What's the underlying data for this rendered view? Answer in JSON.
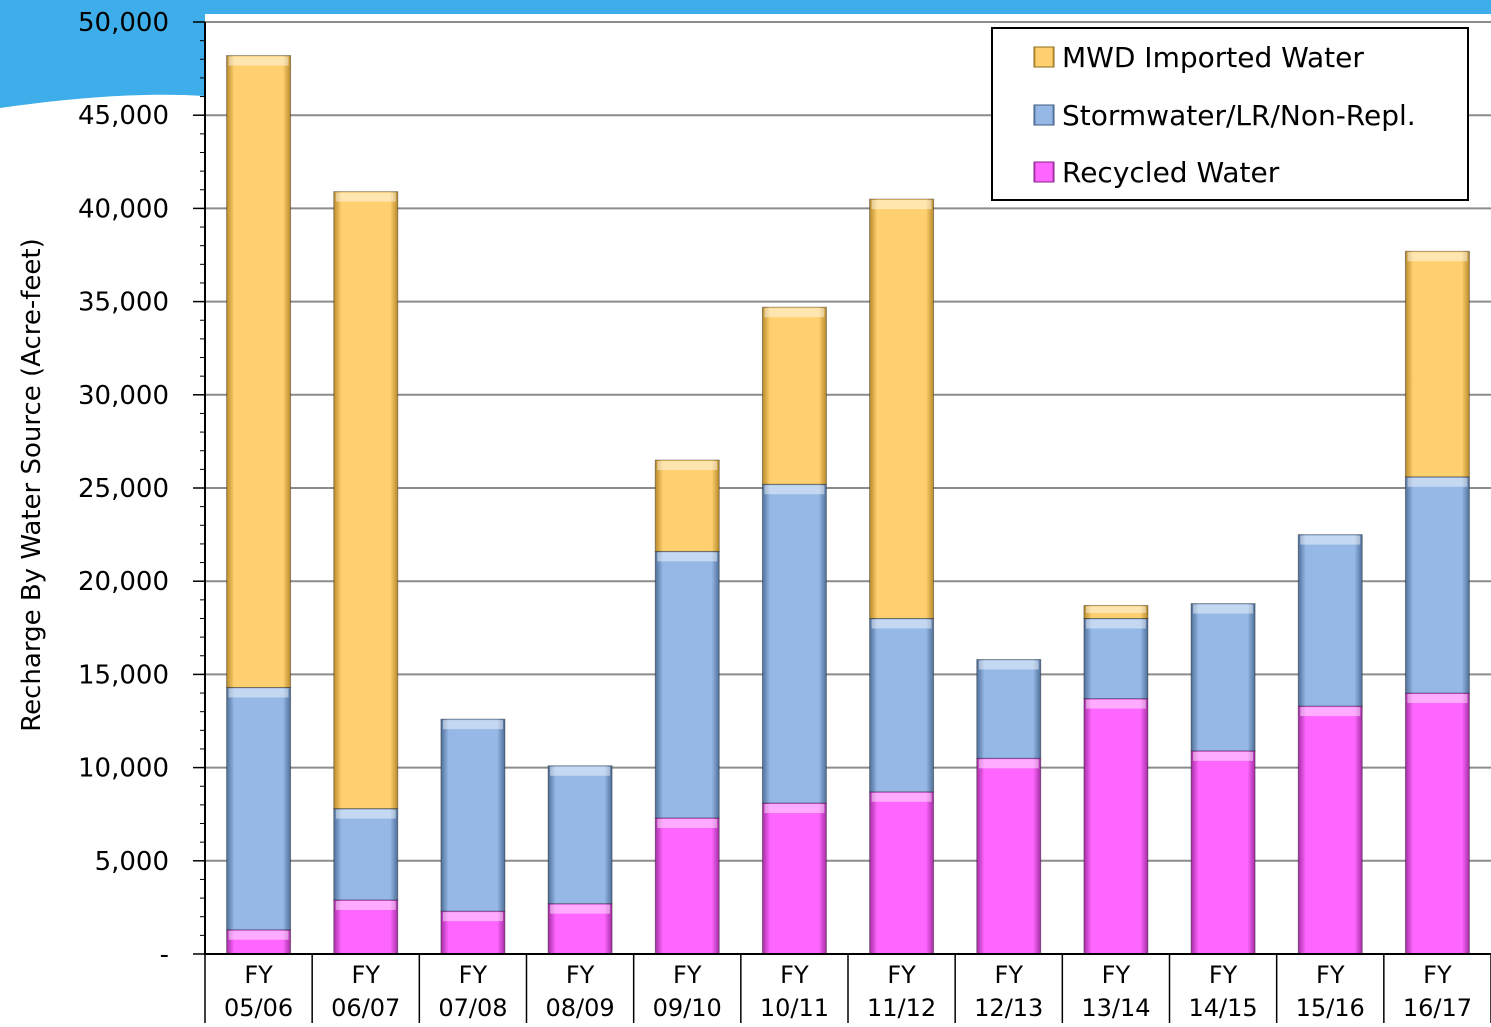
{
  "colors": {
    "slide_accent": "#3daee9",
    "recycled": "#ff66ff",
    "stormwater": "#95b8e6",
    "mwd": "#ffd070",
    "gridline": "#8c8c8c",
    "plot_background": "#ffffff"
  },
  "chart_data": {
    "type": "bar",
    "stacked": true,
    "categories": [
      [
        "FY",
        "05/06"
      ],
      [
        "FY",
        "06/07"
      ],
      [
        "FY",
        "07/08"
      ],
      [
        "FY",
        "08/09"
      ],
      [
        "FY",
        "09/10"
      ],
      [
        "FY",
        "10/11"
      ],
      [
        "FY",
        "11/12"
      ],
      [
        "FY",
        "12/13"
      ],
      [
        "FY",
        "13/14"
      ],
      [
        "FY",
        "14/15"
      ],
      [
        "FY",
        "15/16"
      ],
      [
        "FY",
        "16/17"
      ]
    ],
    "series": [
      {
        "name": "Recycled Water",
        "color": "#ff66ff",
        "values": [
          1300,
          2900,
          2300,
          2700,
          7300,
          8100,
          8700,
          10500,
          13700,
          10900,
          13300,
          14000
        ]
      },
      {
        "name": "Stormwater/LR/Non-Repl.",
        "color": "#95b8e6",
        "values": [
          13000,
          4900,
          10300,
          7400,
          14300,
          17100,
          9300,
          5300,
          4300,
          7900,
          9200,
          11600
        ]
      },
      {
        "name": "MWD Imported Water",
        "color": "#ffd070",
        "values": [
          33900,
          33100,
          0,
          0,
          4900,
          9500,
          22500,
          0,
          700,
          0,
          0,
          12100
        ]
      }
    ],
    "legend_order": [
      "MWD Imported Water",
      "Stormwater/LR/Non-Repl.",
      "Recycled Water"
    ],
    "legend_position": "top-right",
    "title": "",
    "xlabel": "",
    "ylabel": "Recharge By Water Source (Acre-feet)",
    "ylim": [
      0,
      50000
    ],
    "yticks": [
      0,
      5000,
      10000,
      15000,
      20000,
      25000,
      30000,
      35000,
      40000,
      45000,
      50000
    ],
    "ytick_labels": [
      "-",
      "5,000",
      "10,000",
      "15,000",
      "20,000",
      "25,000",
      "30,000",
      "35,000",
      "40,000",
      "45,000",
      "50,000"
    ],
    "grid": true
  }
}
